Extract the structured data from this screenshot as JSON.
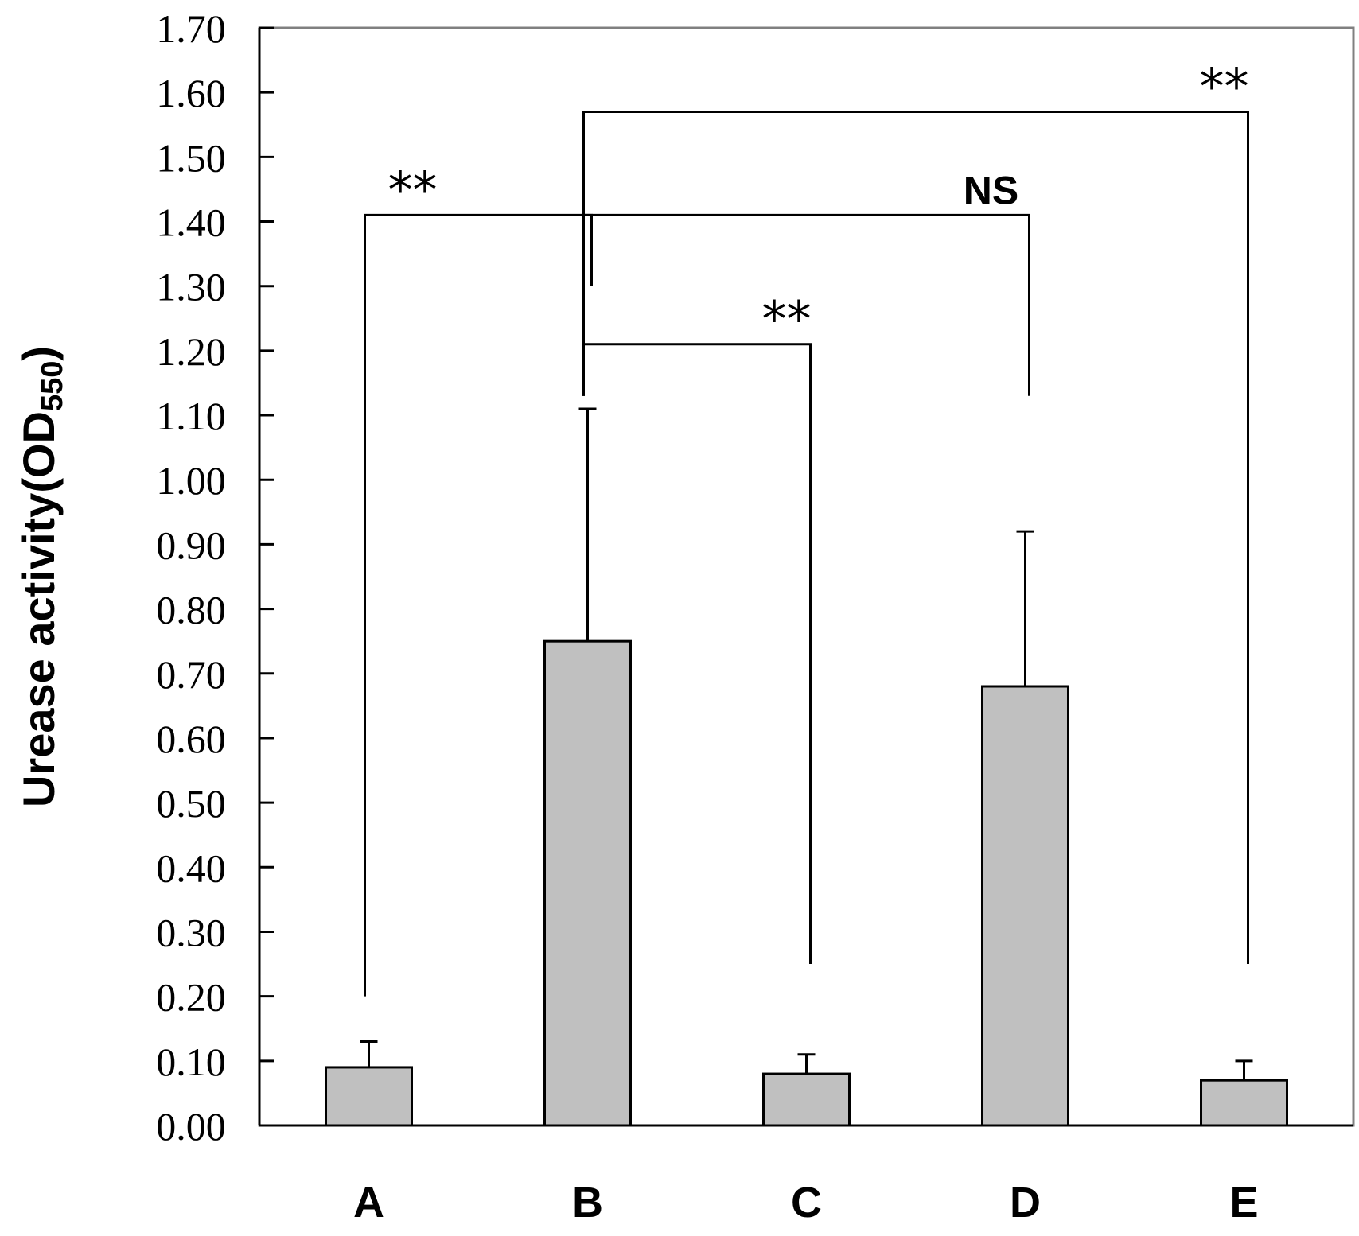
{
  "chart_data": {
    "type": "bar",
    "ylabel_main": "Urease activity(OD",
    "ylabel_sub": "550",
    "ylabel_close": ")",
    "ylim": [
      0,
      1.7
    ],
    "yticks": [
      "0.00",
      "0.10",
      "0.20",
      "0.30",
      "0.40",
      "0.50",
      "0.60",
      "0.70",
      "0.80",
      "0.90",
      "1.00",
      "1.10",
      "1.20",
      "1.30",
      "1.40",
      "1.50",
      "1.60",
      "1.70"
    ],
    "categories": [
      "A",
      "B",
      "C",
      "D",
      "E"
    ],
    "values": [
      0.09,
      0.75,
      0.08,
      0.68,
      0.07
    ],
    "errors": [
      0.04,
      0.36,
      0.03,
      0.24,
      0.03
    ],
    "bar_color": "#c0c0c0",
    "grid": false,
    "comparisons": [
      {
        "from": 0,
        "to": 1,
        "label": "**",
        "bracket_y": 1.41,
        "from_end_y": 0.2,
        "to_end_y": 1.3
      },
      {
        "from": 1,
        "to": 2,
        "label": "**",
        "bracket_y": 1.21,
        "from_end_y": 1.13,
        "to_end_y": 0.25
      },
      {
        "from": 1,
        "to": 3,
        "label": "NS",
        "bracket_y": 1.41,
        "from_end_y": 1.13,
        "to_end_y": 1.13
      },
      {
        "from": 1,
        "to": 4,
        "label": "**",
        "bracket_y": 1.57,
        "from_end_y": 1.13,
        "to_end_y": 0.25
      }
    ]
  }
}
